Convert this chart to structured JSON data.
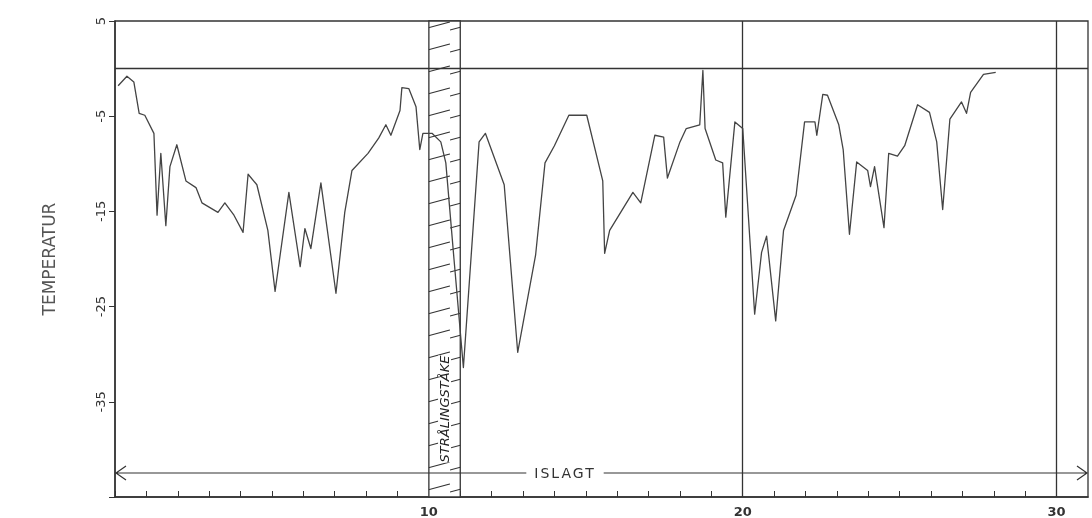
{
  "chart_data": {
    "type": "line",
    "ylabel": "TEMPERATUR",
    "x": [
      0.1,
      0.38,
      0.6,
      0.77,
      0.95,
      1.24,
      1.34,
      1.46,
      1.62,
      1.75,
      1.97,
      2.26,
      2.58,
      2.77,
      3.28,
      3.5,
      3.79,
      4.08,
      4.24,
      4.52,
      4.87,
      5.1,
      5.54,
      5.9,
      6.05,
      6.24,
      6.56,
      7.04,
      7.32,
      7.55,
      8.06,
      8.4,
      8.63,
      8.79,
      9.08,
      9.14,
      9.36,
      9.59,
      9.71,
      9.81,
      10.1,
      10.38,
      10.54,
      10.8,
      11.1,
      11.6,
      11.8,
      12.4,
      12.83,
      13.4,
      13.7,
      14.0,
      14.46,
      15.03,
      15.54,
      15.6,
      15.76,
      16.5,
      16.75,
      17.2,
      17.48,
      17.6,
      18.0,
      18.2,
      18.63,
      18.73,
      18.8,
      19.14,
      19.36,
      19.46,
      19.75,
      20.0,
      20.38,
      20.6,
      20.76,
      21.05,
      21.3,
      21.7,
      21.97,
      22.3,
      22.36,
      22.55,
      22.7,
      23.06,
      23.2,
      23.4,
      23.63,
      23.98,
      24.07,
      24.2,
      24.5,
      24.65,
      24.93,
      25.16,
      25.57,
      25.95,
      26.18,
      26.37,
      26.6,
      26.97,
      27.13,
      27.26,
      27.67,
      28.06
    ],
    "series": [
      {
        "color": "#444444",
        "values": [
          -1.8,
          -0.8,
          -1.4,
          -4.7,
          -4.9,
          -6.8,
          -15.4,
          -8.9,
          -16.5,
          -10.3,
          -8.0,
          -11.8,
          -12.5,
          -14.1,
          -15.1,
          -14.1,
          -15.4,
          -17.2,
          -11.1,
          -12.2,
          -17.0,
          -23.4,
          -13.0,
          -20.8,
          -16.8,
          -18.9,
          -12.0,
          -23.6,
          -15.1,
          -10.7,
          -8.9,
          -7.3,
          -5.9,
          -7.0,
          -4.4,
          -2.0,
          -2.1,
          -4.0,
          -8.5,
          -6.8,
          -6.8,
          -7.7,
          -9.9,
          -20.0,
          -31.4,
          -7.7,
          -6.8,
          -12.2,
          -29.8,
          -19.6,
          -9.9,
          -8.1,
          -4.9,
          -4.9,
          -11.8,
          -19.4,
          -17.0,
          -13.0,
          -14.1,
          -7.0,
          -7.2,
          -11.5,
          -7.7,
          -6.3,
          -5.9,
          -0.2,
          -6.3,
          -9.6,
          -9.9,
          -15.6,
          -5.6,
          -6.3,
          -25.8,
          -19.3,
          -17.6,
          -26.5,
          -17.0,
          -13.3,
          -5.6,
          -5.6,
          -7.0,
          -2.7,
          -2.8,
          -5.9,
          -8.5,
          -17.4,
          -9.8,
          -10.7,
          -12.4,
          -10.3,
          -16.7,
          -8.9,
          -9.2,
          -8.1,
          -3.8,
          -4.6,
          -7.7,
          -14.8,
          -5.3,
          -3.5,
          -4.7,
          -2.5,
          -0.6,
          -0.4
        ]
      }
    ],
    "xlim": [
      0,
      31
    ],
    "xticks": [
      {
        "value": 0,
        "label": null
      },
      {
        "value": 1,
        "label": null
      },
      {
        "value": 2,
        "label": null
      },
      {
        "value": 3,
        "label": null
      },
      {
        "value": 4,
        "label": null
      },
      {
        "value": 5,
        "label": null
      },
      {
        "value": 6,
        "label": null
      },
      {
        "value": 7,
        "label": null
      },
      {
        "value": 8,
        "label": null
      },
      {
        "value": 9,
        "label": null
      },
      10,
      {
        "value": 11,
        "label": null
      },
      {
        "value": 12,
        "label": null
      },
      {
        "value": 13,
        "label": null
      },
      {
        "value": 14,
        "label": null
      },
      {
        "value": 15,
        "label": null
      },
      {
        "value": 16,
        "label": null
      },
      {
        "value": 17,
        "label": null
      },
      {
        "value": 18,
        "label": null
      },
      {
        "value": 19,
        "label": null
      },
      20,
      {
        "value": 21,
        "label": null
      },
      {
        "value": 22,
        "label": null
      },
      {
        "value": 23,
        "label": null
      },
      {
        "value": 24,
        "label": null
      },
      {
        "value": 25,
        "label": null
      },
      {
        "value": 26,
        "label": null
      },
      {
        "value": 27,
        "label": null
      },
      {
        "value": 28,
        "label": null
      },
      {
        "value": 29,
        "label": null
      },
      30
    ],
    "ylim": [
      -45,
      5
    ],
    "yticks": [
      {
        "value": -45,
        "label": null
      },
      -35,
      -25,
      -15,
      -5,
      5
    ],
    "ref_lines": [
      {
        "axis": "y",
        "value": 0,
        "label": null
      },
      {
        "axis": "x",
        "value": 20,
        "label": null
      },
      {
        "axis": "x",
        "value": 30,
        "label": null
      }
    ],
    "bands": [
      {
        "axis": "x",
        "from": 10,
        "to": 11,
        "label": "STRÅLINGSTÅKE"
      }
    ],
    "annotations": [
      "ISLAGT"
    ],
    "grid": false,
    "marker": "none",
    "line_style": "solid"
  }
}
